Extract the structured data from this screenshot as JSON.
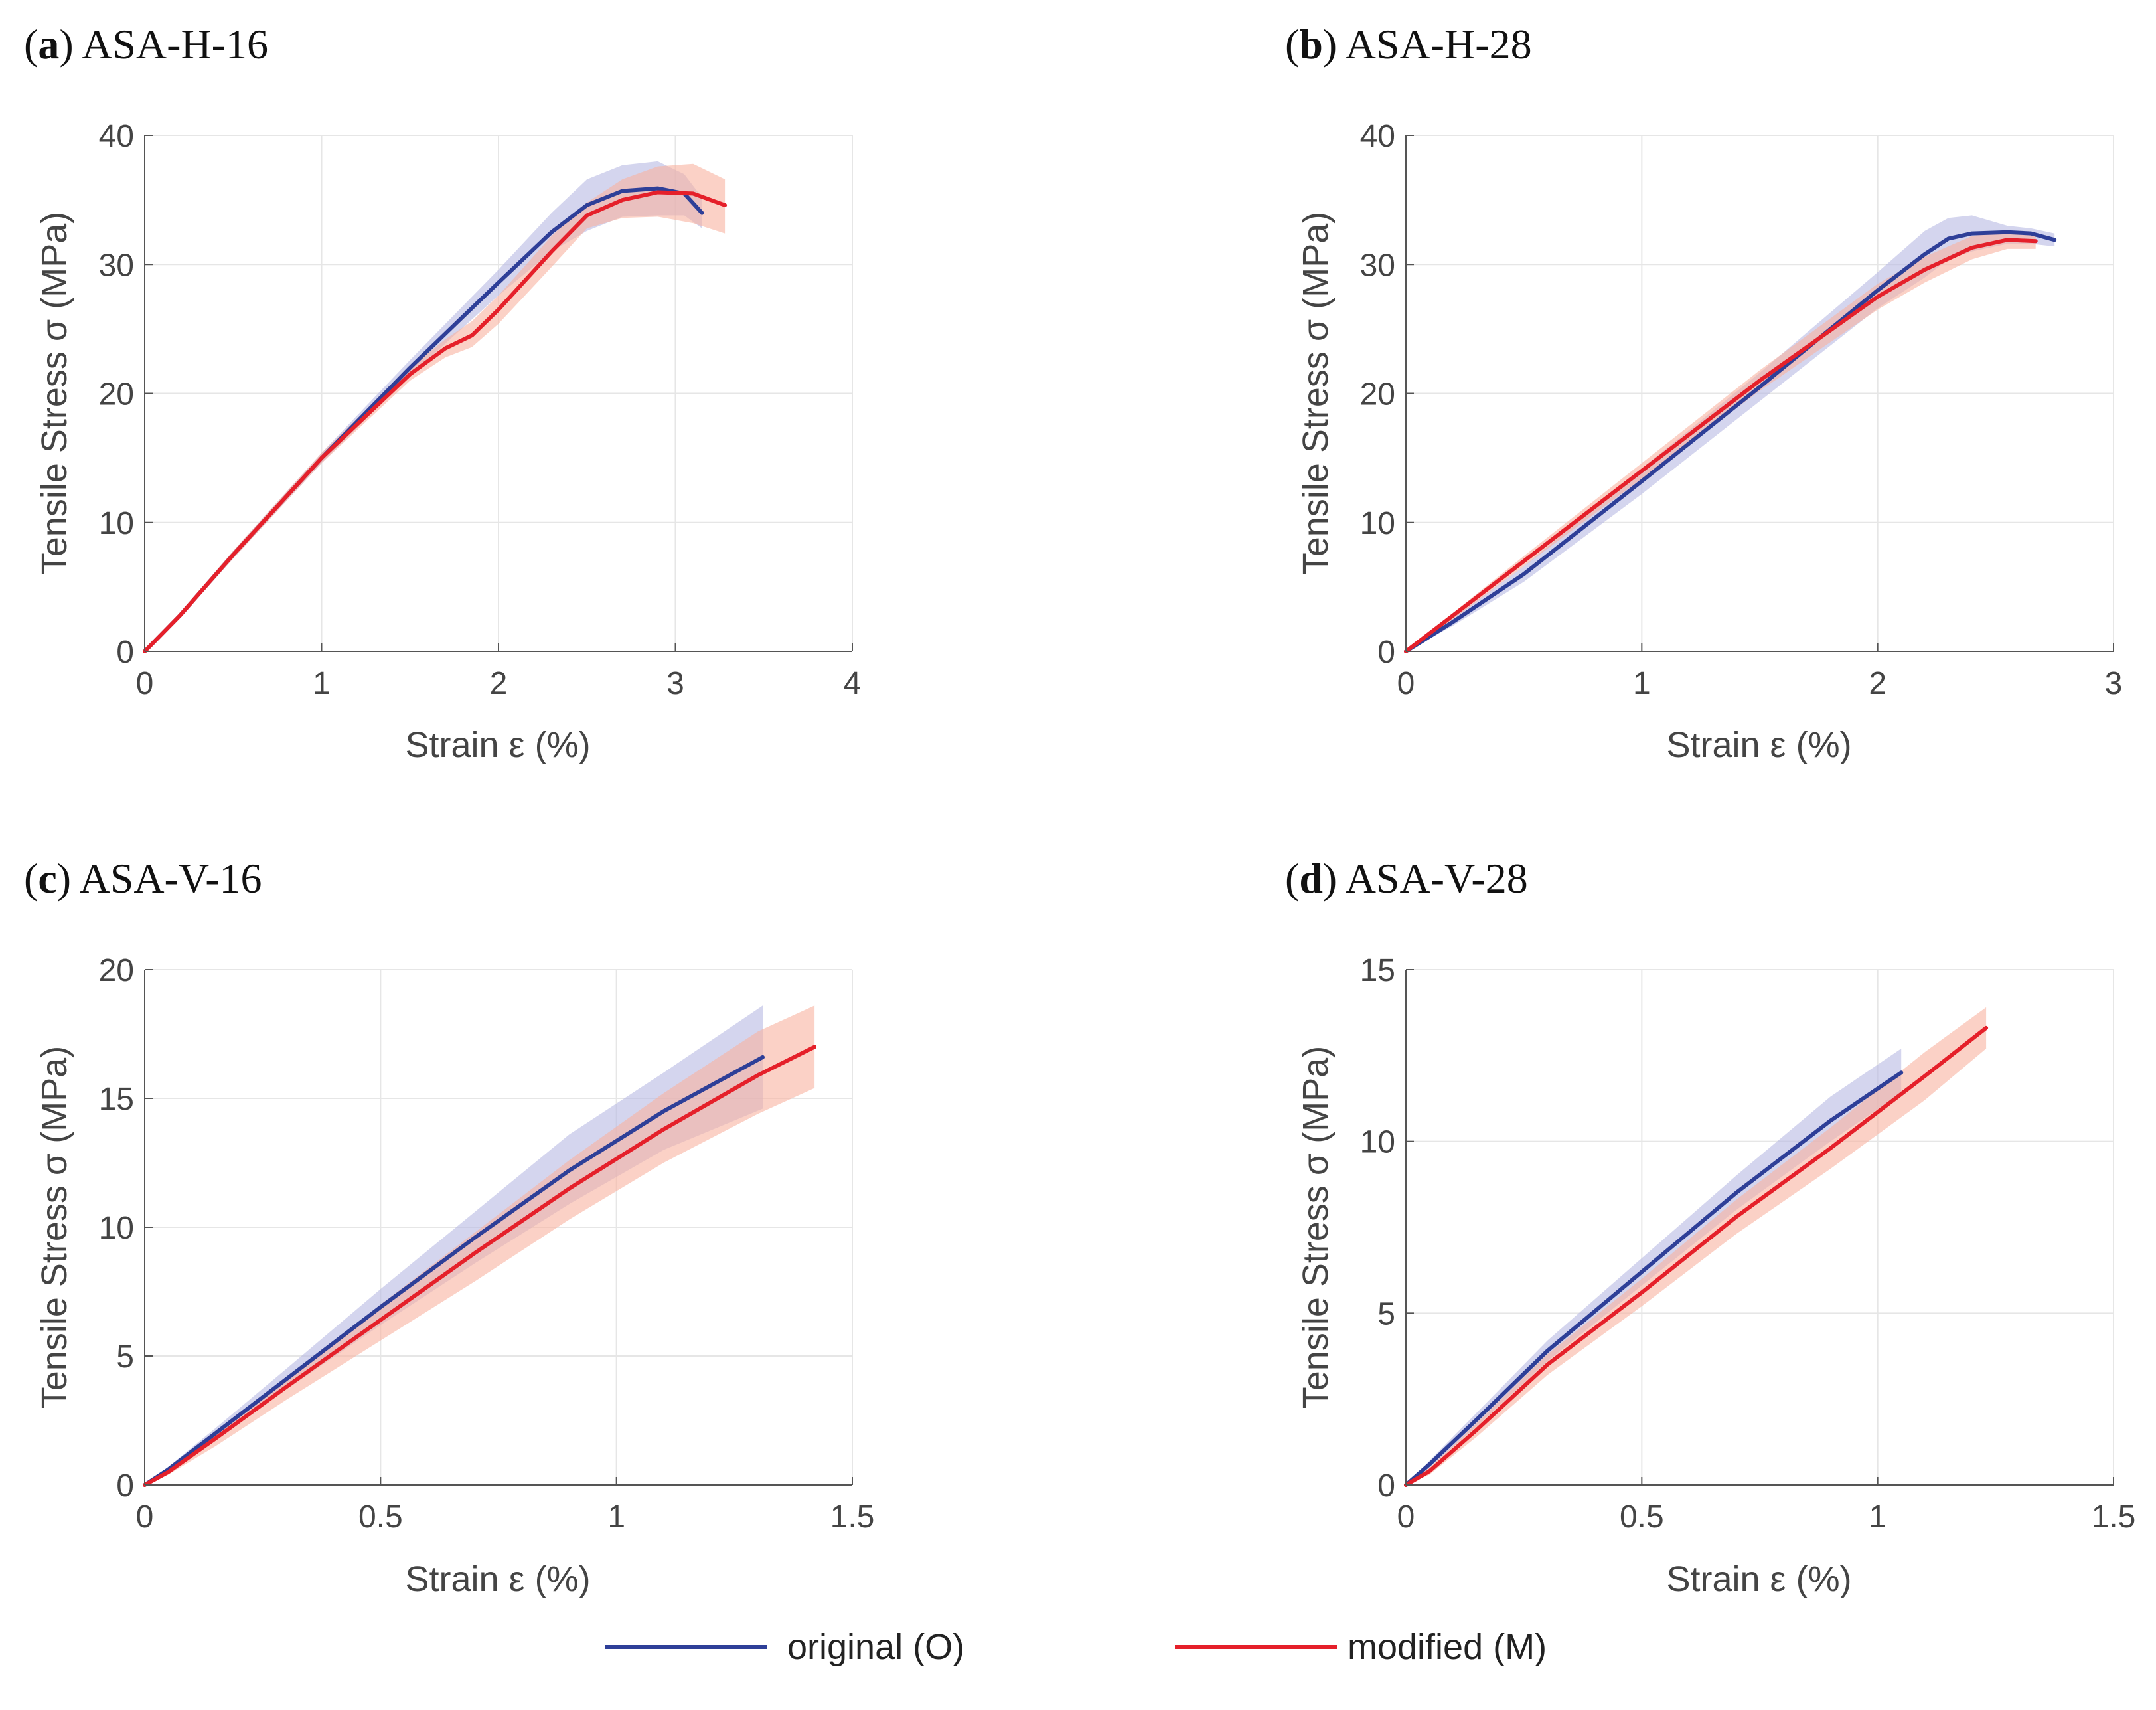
{
  "legend": {
    "original_label": "original (O)",
    "modified_label": "modified (M)"
  },
  "colors": {
    "original": "#2e3f98",
    "original_band": "#b7b9e2",
    "modified": "#e5202a",
    "modified_band": "#f8b3a0",
    "grid": "#e6e6e6",
    "axis": "#555555"
  },
  "chart_data": [
    {
      "type": "line",
      "panel_letter": "a",
      "title": "ASA-H-16",
      "xlabel": "Strain ε (%)",
      "ylabel": "Tensile Stress σ (MPa)",
      "xlim": [
        0,
        4
      ],
      "ylim": [
        0,
        40
      ],
      "xticks": [
        0,
        1,
        2,
        3,
        4
      ],
      "xtick_labels": [
        "0",
        "1",
        "2",
        "3",
        "4"
      ],
      "yticks": [
        0,
        10,
        20,
        30,
        40
      ],
      "ytick_labels": [
        "0",
        "10",
        "20",
        "30",
        "40"
      ],
      "grid": true,
      "series": [
        {
          "name": "original (O)",
          "x": [
            0,
            0.2,
            0.5,
            1.0,
            1.5,
            2.0,
            2.3,
            2.5,
            2.7,
            2.9,
            3.05,
            3.15
          ],
          "y": [
            0,
            2.8,
            7.5,
            15.0,
            22.0,
            28.6,
            32.5,
            34.6,
            35.7,
            35.9,
            35.5,
            34.0
          ],
          "band_upper": [
            0,
            3.0,
            7.8,
            15.4,
            22.6,
            29.6,
            34.0,
            36.6,
            37.7,
            38.0,
            37.0,
            35.2
          ],
          "band_lower": [
            0,
            2.6,
            7.2,
            14.6,
            21.4,
            27.6,
            31.0,
            32.6,
            33.7,
            33.8,
            33.8,
            32.8
          ]
        },
        {
          "name": "modified (M)",
          "x": [
            0,
            0.2,
            0.5,
            1.0,
            1.5,
            1.7,
            1.85,
            2.0,
            2.3,
            2.5,
            2.7,
            2.9,
            3.1,
            3.28
          ],
          "y": [
            0,
            2.8,
            7.5,
            15.0,
            21.5,
            23.5,
            24.5,
            26.5,
            31.0,
            33.8,
            35.0,
            35.6,
            35.5,
            34.6
          ],
          "band_upper": [
            0,
            3.0,
            7.8,
            15.4,
            22.0,
            24.2,
            25.6,
            27.6,
            32.2,
            34.8,
            36.6,
            37.6,
            37.8,
            36.6
          ],
          "band_lower": [
            0,
            2.6,
            7.2,
            14.6,
            21.0,
            22.8,
            23.6,
            25.4,
            29.8,
            32.8,
            33.6,
            33.7,
            33.2,
            32.4
          ]
        }
      ]
    },
    {
      "type": "line",
      "panel_letter": "b",
      "title": "ASA-H-28",
      "xlabel": "Strain ε (%)",
      "ylabel": "Tensile Stress σ (MPa)",
      "xlim": [
        0,
        3
      ],
      "ylim": [
        0,
        40
      ],
      "xticks": [
        0,
        1,
        2,
        3
      ],
      "xtick_labels": [
        "0",
        "1",
        "2",
        "3"
      ],
      "yticks": [
        0,
        10,
        20,
        30,
        40
      ],
      "ytick_labels": [
        "0",
        "10",
        "20",
        "30",
        "40"
      ],
      "grid": true,
      "series": [
        {
          "name": "original (O)",
          "x": [
            0,
            0.2,
            0.5,
            1.0,
            1.5,
            2.0,
            2.2,
            2.3,
            2.4,
            2.55,
            2.65,
            2.75
          ],
          "y": [
            0,
            2.3,
            6.0,
            13.2,
            20.5,
            28.0,
            30.8,
            32.0,
            32.4,
            32.5,
            32.4,
            31.9
          ],
          "band_upper": [
            0,
            2.6,
            6.6,
            14.2,
            21.6,
            29.4,
            32.6,
            33.6,
            33.8,
            33.0,
            32.8,
            32.4
          ],
          "band_lower": [
            0,
            2.0,
            5.4,
            12.2,
            19.4,
            26.6,
            29.0,
            30.4,
            31.0,
            31.6,
            31.6,
            31.4
          ]
        },
        {
          "name": "modified (M)",
          "x": [
            0,
            0.2,
            0.5,
            1.0,
            1.5,
            2.0,
            2.2,
            2.4,
            2.55,
            2.67
          ],
          "y": [
            0,
            2.8,
            7.0,
            14.0,
            21.0,
            27.5,
            29.6,
            31.3,
            31.9,
            31.8
          ],
          "band_upper": [
            0,
            3.0,
            7.4,
            14.6,
            21.8,
            28.5,
            30.6,
            32.2,
            32.6,
            32.4
          ],
          "band_lower": [
            0,
            2.5,
            6.6,
            13.4,
            20.2,
            26.5,
            28.6,
            30.4,
            31.2,
            31.2
          ]
        }
      ]
    },
    {
      "type": "line",
      "panel_letter": "c",
      "title": "ASA-V-16",
      "xlabel": "Strain ε (%)",
      "ylabel": "Tensile Stress σ (MPa)",
      "xlim": [
        0,
        1.5
      ],
      "ylim": [
        0,
        20
      ],
      "xticks": [
        0,
        0.5,
        1,
        1.5
      ],
      "xtick_labels": [
        "0",
        "0.5",
        "1",
        "1.5"
      ],
      "yticks": [
        0,
        5,
        10,
        15,
        20
      ],
      "ytick_labels": [
        "0",
        "5",
        "10",
        "15",
        "20"
      ],
      "grid": true,
      "series": [
        {
          "name": "original (O)",
          "x": [
            0,
            0.05,
            0.15,
            0.3,
            0.5,
            0.7,
            0.9,
            1.1,
            1.31
          ],
          "y": [
            0,
            0.6,
            2.0,
            4.1,
            6.9,
            9.6,
            12.2,
            14.5,
            16.6
          ],
          "band_upper": [
            0,
            0.7,
            2.2,
            4.5,
            7.6,
            10.6,
            13.6,
            16.0,
            18.6
          ],
          "band_lower": [
            0,
            0.5,
            1.8,
            3.7,
            6.2,
            8.6,
            10.9,
            13.0,
            14.6
          ]
        },
        {
          "name": "modified (M)",
          "x": [
            0,
            0.05,
            0.15,
            0.3,
            0.5,
            0.7,
            0.9,
            1.1,
            1.3,
            1.42
          ],
          "y": [
            0,
            0.5,
            1.8,
            3.8,
            6.4,
            9.0,
            11.5,
            13.8,
            15.9,
            17.0
          ],
          "band_upper": [
            0,
            0.6,
            2.0,
            4.1,
            7.0,
            9.8,
            12.6,
            15.2,
            17.6,
            18.6
          ],
          "band_lower": [
            0,
            0.4,
            1.5,
            3.3,
            5.6,
            7.9,
            10.3,
            12.5,
            14.4,
            15.4
          ]
        }
      ]
    },
    {
      "type": "line",
      "panel_letter": "d",
      "title": "ASA-V-28",
      "xlabel": "Strain ε (%)",
      "ylabel": "Tensile Stress σ (MPa)",
      "xlim": [
        0,
        1.5
      ],
      "ylim": [
        0,
        15
      ],
      "xticks": [
        0,
        0.5,
        1,
        1.5
      ],
      "xtick_labels": [
        "0",
        "0.5",
        "1",
        "1.5"
      ],
      "yticks": [
        0,
        5,
        10,
        15
      ],
      "ytick_labels": [
        "0",
        "5",
        "10",
        "15"
      ],
      "grid": true,
      "series": [
        {
          "name": "original (O)",
          "x": [
            0,
            0.05,
            0.15,
            0.3,
            0.5,
            0.7,
            0.9,
            1.05
          ],
          "y": [
            0,
            0.6,
            1.9,
            3.9,
            6.2,
            8.5,
            10.6,
            12.0
          ],
          "band_upper": [
            0,
            0.7,
            2.1,
            4.2,
            6.6,
            9.0,
            11.3,
            12.7
          ],
          "band_lower": [
            0,
            0.5,
            1.7,
            3.6,
            5.8,
            8.0,
            10.0,
            11.4
          ]
        },
        {
          "name": "modified (M)",
          "x": [
            0,
            0.05,
            0.15,
            0.3,
            0.5,
            0.7,
            0.9,
            1.1,
            1.23
          ],
          "y": [
            0,
            0.4,
            1.6,
            3.5,
            5.6,
            7.8,
            9.8,
            11.9,
            13.3
          ],
          "band_upper": [
            0,
            0.5,
            1.8,
            3.8,
            6.0,
            8.3,
            10.4,
            12.6,
            13.9
          ],
          "band_lower": [
            0,
            0.3,
            1.4,
            3.2,
            5.2,
            7.3,
            9.2,
            11.2,
            12.7
          ]
        }
      ]
    }
  ]
}
